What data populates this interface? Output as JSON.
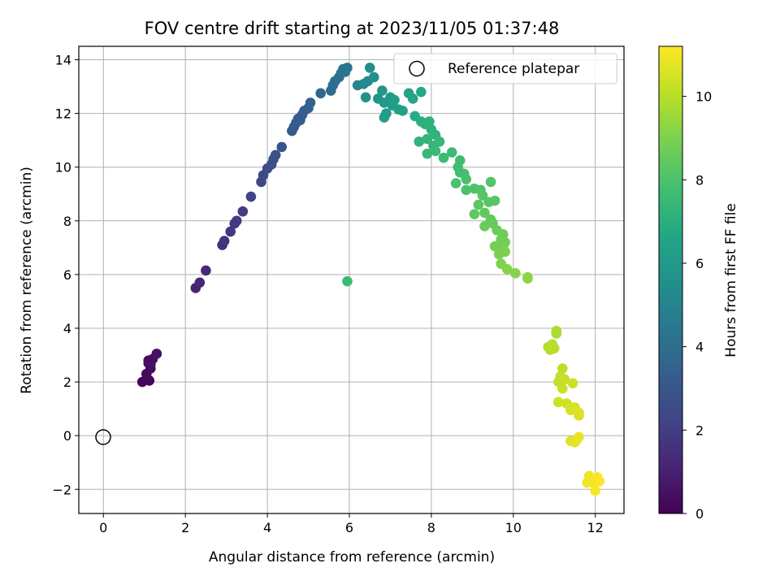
{
  "chart_data": {
    "type": "scatter",
    "title": "FOV centre drift starting at 2023/11/05 01:37:48",
    "xlabel": "Angular distance from reference (arcmin)",
    "ylabel": "Rotation from reference (arcmin)",
    "xlim": [
      -0.6,
      12.7
    ],
    "ylim": [
      -2.9,
      14.5
    ],
    "xticks": [
      0,
      2,
      4,
      6,
      8,
      10,
      12
    ],
    "yticks": [
      -2,
      0,
      2,
      4,
      6,
      8,
      10,
      12,
      14
    ],
    "grid": true,
    "legend": {
      "position": "top-right",
      "entries": [
        "Reference platepar"
      ]
    },
    "reference_point": {
      "x": 0,
      "y": 0,
      "label": "Reference platepar"
    },
    "colorbar": {
      "label": "Hours from first FF file",
      "range": [
        0,
        11.2
      ],
      "ticks": [
        0,
        2,
        4,
        6,
        8,
        10
      ],
      "colormap": "viridis"
    },
    "points": [
      {
        "x": 0.95,
        "y": 2.0,
        "c": 0.1
      },
      {
        "x": 1.05,
        "y": 2.1,
        "c": 0.15
      },
      {
        "x": 1.12,
        "y": 2.05,
        "c": 0.2
      },
      {
        "x": 1.05,
        "y": 2.3,
        "c": 0.25
      },
      {
        "x": 1.15,
        "y": 2.5,
        "c": 0.3
      },
      {
        "x": 1.1,
        "y": 2.7,
        "c": 0.35
      },
      {
        "x": 1.1,
        "y": 2.8,
        "c": 0.4
      },
      {
        "x": 1.2,
        "y": 2.85,
        "c": 0.45
      },
      {
        "x": 1.15,
        "y": 2.65,
        "c": 0.5
      },
      {
        "x": 1.3,
        "y": 3.05,
        "c": 0.55
      },
      {
        "x": 2.25,
        "y": 5.5,
        "c": 1.1
      },
      {
        "x": 2.35,
        "y": 5.7,
        "c": 1.2
      },
      {
        "x": 2.5,
        "y": 6.15,
        "c": 1.3
      },
      {
        "x": 2.9,
        "y": 7.1,
        "c": 1.6
      },
      {
        "x": 2.95,
        "y": 7.25,
        "c": 1.65
      },
      {
        "x": 3.1,
        "y": 7.6,
        "c": 1.75
      },
      {
        "x": 3.2,
        "y": 7.9,
        "c": 1.85
      },
      {
        "x": 3.25,
        "y": 8.0,
        "c": 1.9
      },
      {
        "x": 3.4,
        "y": 8.35,
        "c": 2.0
      },
      {
        "x": 3.6,
        "y": 8.9,
        "c": 2.2
      },
      {
        "x": 3.85,
        "y": 9.45,
        "c": 2.4
      },
      {
        "x": 3.9,
        "y": 9.7,
        "c": 2.45
      },
      {
        "x": 4.0,
        "y": 9.95,
        "c": 2.55
      },
      {
        "x": 4.1,
        "y": 10.1,
        "c": 2.65
      },
      {
        "x": 4.15,
        "y": 10.3,
        "c": 2.7
      },
      {
        "x": 4.2,
        "y": 10.45,
        "c": 2.75
      },
      {
        "x": 4.35,
        "y": 10.75,
        "c": 2.85
      },
      {
        "x": 4.6,
        "y": 11.35,
        "c": 3.1
      },
      {
        "x": 4.65,
        "y": 11.5,
        "c": 3.15
      },
      {
        "x": 4.7,
        "y": 11.65,
        "c": 3.2
      },
      {
        "x": 4.75,
        "y": 11.8,
        "c": 3.25
      },
      {
        "x": 4.85,
        "y": 11.95,
        "c": 3.3
      },
      {
        "x": 4.9,
        "y": 12.1,
        "c": 3.35
      },
      {
        "x": 5.0,
        "y": 12.2,
        "c": 3.4
      },
      {
        "x": 5.05,
        "y": 12.4,
        "c": 3.45
      },
      {
        "x": 4.8,
        "y": 11.75,
        "c": 3.28
      },
      {
        "x": 5.3,
        "y": 12.75,
        "c": 3.7
      },
      {
        "x": 5.55,
        "y": 12.85,
        "c": 3.9
      },
      {
        "x": 5.6,
        "y": 13.05,
        "c": 3.95
      },
      {
        "x": 5.65,
        "y": 13.2,
        "c": 4.0
      },
      {
        "x": 5.75,
        "y": 13.35,
        "c": 4.1
      },
      {
        "x": 5.8,
        "y": 13.5,
        "c": 4.2
      },
      {
        "x": 5.85,
        "y": 13.65,
        "c": 4.3
      },
      {
        "x": 5.95,
        "y": 13.7,
        "c": 4.4
      },
      {
        "x": 5.9,
        "y": 13.55,
        "c": 4.35
      },
      {
        "x": 6.2,
        "y": 13.05,
        "c": 5.0
      },
      {
        "x": 6.35,
        "y": 13.1,
        "c": 5.2
      },
      {
        "x": 6.45,
        "y": 13.2,
        "c": 5.3
      },
      {
        "x": 6.5,
        "y": 13.7,
        "c": 5.4
      },
      {
        "x": 6.6,
        "y": 13.35,
        "c": 5.5
      },
      {
        "x": 6.4,
        "y": 12.6,
        "c": 5.6
      },
      {
        "x": 6.7,
        "y": 12.55,
        "c": 5.75
      },
      {
        "x": 6.8,
        "y": 12.85,
        "c": 5.85
      },
      {
        "x": 6.85,
        "y": 12.4,
        "c": 5.95
      },
      {
        "x": 6.9,
        "y": 12.0,
        "c": 6.05
      },
      {
        "x": 7.0,
        "y": 12.6,
        "c": 6.1
      },
      {
        "x": 7.05,
        "y": 12.3,
        "c": 6.15
      },
      {
        "x": 7.1,
        "y": 12.5,
        "c": 6.25
      },
      {
        "x": 7.2,
        "y": 12.15,
        "c": 6.3
      },
      {
        "x": 7.3,
        "y": 12.1,
        "c": 6.35
      },
      {
        "x": 6.85,
        "y": 11.85,
        "c": 6.2
      },
      {
        "x": 7.45,
        "y": 12.75,
        "c": 6.5
      },
      {
        "x": 7.55,
        "y": 12.55,
        "c": 6.6
      },
      {
        "x": 7.75,
        "y": 12.8,
        "c": 6.7
      },
      {
        "x": 7.6,
        "y": 11.9,
        "c": 6.9
      },
      {
        "x": 7.75,
        "y": 11.7,
        "c": 7.0
      },
      {
        "x": 7.85,
        "y": 11.6,
        "c": 7.05
      },
      {
        "x": 7.95,
        "y": 11.7,
        "c": 7.1
      },
      {
        "x": 8.0,
        "y": 11.4,
        "c": 7.15
      },
      {
        "x": 8.1,
        "y": 11.2,
        "c": 7.2
      },
      {
        "x": 7.7,
        "y": 10.95,
        "c": 7.25
      },
      {
        "x": 7.9,
        "y": 11.05,
        "c": 7.3
      },
      {
        "x": 8.05,
        "y": 10.8,
        "c": 7.35
      },
      {
        "x": 8.2,
        "y": 10.95,
        "c": 7.4
      },
      {
        "x": 7.9,
        "y": 10.5,
        "c": 7.45
      },
      {
        "x": 8.1,
        "y": 10.6,
        "c": 7.5
      },
      {
        "x": 8.3,
        "y": 10.35,
        "c": 7.55
      },
      {
        "x": 8.5,
        "y": 10.55,
        "c": 7.6
      },
      {
        "x": 8.7,
        "y": 10.25,
        "c": 7.7
      },
      {
        "x": 8.65,
        "y": 10.0,
        "c": 7.75
      },
      {
        "x": 8.7,
        "y": 9.8,
        "c": 7.8
      },
      {
        "x": 8.8,
        "y": 9.75,
        "c": 7.85
      },
      {
        "x": 8.85,
        "y": 9.55,
        "c": 7.9
      },
      {
        "x": 8.6,
        "y": 9.4,
        "c": 7.95
      },
      {
        "x": 8.85,
        "y": 9.15,
        "c": 8.0
      },
      {
        "x": 9.05,
        "y": 9.2,
        "c": 8.05
      },
      {
        "x": 9.2,
        "y": 9.15,
        "c": 8.1
      },
      {
        "x": 9.45,
        "y": 9.45,
        "c": 8.15
      },
      {
        "x": 9.25,
        "y": 8.95,
        "c": 8.2
      },
      {
        "x": 9.4,
        "y": 8.7,
        "c": 8.25
      },
      {
        "x": 9.55,
        "y": 8.75,
        "c": 8.3
      },
      {
        "x": 9.15,
        "y": 8.6,
        "c": 8.35
      },
      {
        "x": 9.05,
        "y": 8.25,
        "c": 8.4
      },
      {
        "x": 9.3,
        "y": 8.3,
        "c": 8.45
      },
      {
        "x": 9.45,
        "y": 8.05,
        "c": 8.5
      },
      {
        "x": 9.5,
        "y": 7.9,
        "c": 8.55
      },
      {
        "x": 9.3,
        "y": 7.8,
        "c": 8.6
      },
      {
        "x": 9.6,
        "y": 7.65,
        "c": 8.65
      },
      {
        "x": 9.75,
        "y": 7.5,
        "c": 8.7
      },
      {
        "x": 9.7,
        "y": 7.3,
        "c": 8.75
      },
      {
        "x": 9.8,
        "y": 7.2,
        "c": 8.8
      },
      {
        "x": 9.55,
        "y": 7.05,
        "c": 8.85
      },
      {
        "x": 9.75,
        "y": 7.0,
        "c": 8.9
      },
      {
        "x": 9.65,
        "y": 6.75,
        "c": 8.95
      },
      {
        "x": 9.8,
        "y": 6.85,
        "c": 9.0
      },
      {
        "x": 9.7,
        "y": 6.4,
        "c": 9.05
      },
      {
        "x": 9.85,
        "y": 6.2,
        "c": 9.1
      },
      {
        "x": 10.05,
        "y": 6.05,
        "c": 9.15
      },
      {
        "x": 10.35,
        "y": 5.85,
        "c": 9.25
      },
      {
        "x": 10.35,
        "y": 5.9,
        "c": 9.27
      },
      {
        "x": 5.95,
        "y": 5.75,
        "c": 7.6
      },
      {
        "x": 11.05,
        "y": 3.9,
        "c": 9.8
      },
      {
        "x": 11.05,
        "y": 3.8,
        "c": 9.82
      },
      {
        "x": 10.85,
        "y": 3.3,
        "c": 9.9
      },
      {
        "x": 10.9,
        "y": 3.2,
        "c": 9.95
      },
      {
        "x": 11.0,
        "y": 3.25,
        "c": 10.0
      },
      {
        "x": 10.95,
        "y": 3.4,
        "c": 9.97
      },
      {
        "x": 11.2,
        "y": 2.5,
        "c": 10.1
      },
      {
        "x": 11.15,
        "y": 2.2,
        "c": 10.15
      },
      {
        "x": 11.1,
        "y": 2.0,
        "c": 10.2
      },
      {
        "x": 11.25,
        "y": 2.1,
        "c": 10.22
      },
      {
        "x": 11.2,
        "y": 1.75,
        "c": 10.25
      },
      {
        "x": 11.45,
        "y": 1.95,
        "c": 10.3
      },
      {
        "x": 11.1,
        "y": 1.25,
        "c": 10.35
      },
      {
        "x": 11.3,
        "y": 1.2,
        "c": 10.4
      },
      {
        "x": 11.4,
        "y": 1.05,
        "c": 10.45
      },
      {
        "x": 11.5,
        "y": 1.05,
        "c": 10.5
      },
      {
        "x": 11.4,
        "y": 0.95,
        "c": 10.55
      },
      {
        "x": 11.6,
        "y": 0.85,
        "c": 10.6
      },
      {
        "x": 11.6,
        "y": 0.75,
        "c": 10.62
      },
      {
        "x": 11.4,
        "y": -0.2,
        "c": 10.7
      },
      {
        "x": 11.5,
        "y": -0.25,
        "c": 10.75
      },
      {
        "x": 11.6,
        "y": -0.05,
        "c": 10.8
      },
      {
        "x": 11.55,
        "y": -0.15,
        "c": 10.78
      },
      {
        "x": 11.85,
        "y": -1.5,
        "c": 10.95
      },
      {
        "x": 11.8,
        "y": -1.75,
        "c": 11.0
      },
      {
        "x": 11.95,
        "y": -1.75,
        "c": 11.05
      },
      {
        "x": 12.0,
        "y": -2.05,
        "c": 11.1
      },
      {
        "x": 12.05,
        "y": -1.55,
        "c": 11.12
      },
      {
        "x": 12.1,
        "y": -1.7,
        "c": 11.15
      }
    ]
  }
}
